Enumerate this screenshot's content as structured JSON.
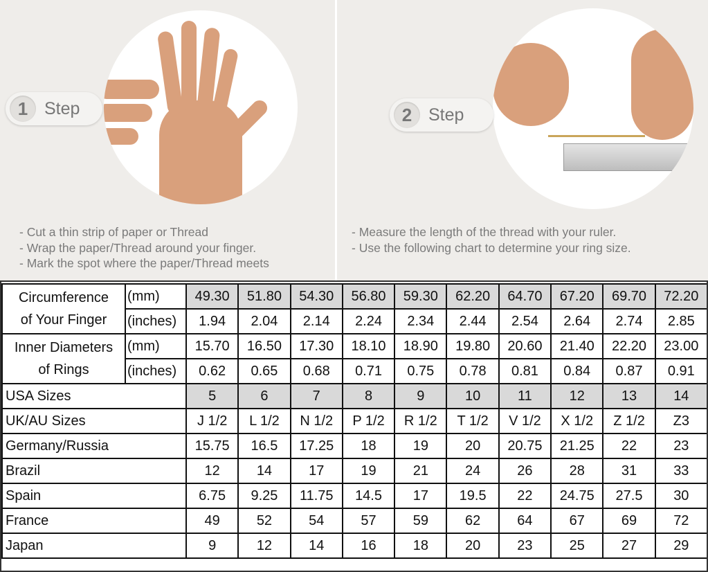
{
  "instructions": {
    "step1": {
      "number": "1",
      "label": "Step",
      "bullets": [
        "- Cut a thin strip of paper or Thread",
        "- Wrap the paper/Thread around your finger.",
        "- Mark the spot where the paper/Thread meets"
      ]
    },
    "step2": {
      "number": "2",
      "label": "Step",
      "bullets": [
        "- Measure the length of the thread with your ruler.",
        "- Use the following chart to determine your ring size."
      ]
    }
  },
  "table": {
    "circumference": {
      "label_line1": "Circumference",
      "label_line2": "of Your Finger",
      "mm_unit": "(mm)",
      "mm": [
        "49.30",
        "51.80",
        "54.30",
        "56.80",
        "59.30",
        "62.20",
        "64.70",
        "67.20",
        "69.70",
        "72.20"
      ],
      "in_unit": "(inches)",
      "in": [
        "1.94",
        "2.04",
        "2.14",
        "2.24",
        "2.34",
        "2.44",
        "2.54",
        "2.64",
        "2.74",
        "2.85"
      ]
    },
    "diameter": {
      "label_line1": "Inner Diameters",
      "label_line2": "of Rings",
      "mm_unit": "(mm)",
      "mm": [
        "15.70",
        "16.50",
        "17.30",
        "18.10",
        "18.90",
        "19.80",
        "20.60",
        "21.40",
        "22.20",
        "23.00"
      ],
      "in_unit": "(inches)",
      "in": [
        "0.62",
        "0.65",
        "0.68",
        "0.71",
        "0.75",
        "0.78",
        "0.81",
        "0.84",
        "0.87",
        "0.91"
      ]
    },
    "rows": [
      {
        "label": "USA Sizes",
        "values": [
          "5",
          "6",
          "7",
          "8",
          "9",
          "10",
          "11",
          "12",
          "13",
          "14"
        ]
      },
      {
        "label": "UK/AU Sizes",
        "values": [
          "J 1/2",
          "L 1/2",
          "N 1/2",
          "P 1/2",
          "R 1/2",
          "T 1/2",
          "V 1/2",
          "X 1/2",
          "Z 1/2",
          "Z3"
        ]
      },
      {
        "label": "Germany/Russia",
        "values": [
          "15.75",
          "16.5",
          "17.25",
          "18",
          "19",
          "20",
          "20.75",
          "21.25",
          "22",
          "23"
        ]
      },
      {
        "label": "Brazil",
        "values": [
          "12",
          "14",
          "17",
          "19",
          "21",
          "24",
          "26",
          "28",
          "31",
          "33"
        ]
      },
      {
        "label": "Spain",
        "values": [
          "6.75",
          "9.25",
          "11.75",
          "14.5",
          "17",
          "19.5",
          "22",
          "24.75",
          "27.5",
          "30"
        ]
      },
      {
        "label": "France",
        "values": [
          "49",
          "52",
          "54",
          "57",
          "59",
          "62",
          "64",
          "67",
          "69",
          "72"
        ]
      },
      {
        "label": "Japan",
        "values": [
          "9",
          "12",
          "14",
          "16",
          "18",
          "20",
          "23",
          "25",
          "27",
          "29"
        ]
      }
    ]
  },
  "colors": {
    "panel_bg": "#efedea",
    "highlight_cell": "#d9d9d9",
    "step_text": "#777777"
  }
}
